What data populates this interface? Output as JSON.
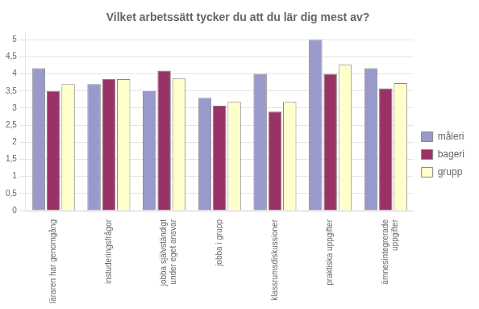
{
  "chart_data": {
    "type": "bar",
    "title": "Vilket arbetssätt tycker du att du lär dig mest av?",
    "categories": [
      "läraren har genomgång",
      "instuderingsfrågor",
      "jobba självständigt\nunder eget ansvar",
      "jobba i grupp",
      "klassrumsdiskussioner",
      "praktiska uppgifter",
      "ämnesintegrerade\nuppgifter"
    ],
    "series": [
      {
        "name": "måleri",
        "color": "#9999CC",
        "values": [
          4.17,
          3.7,
          3.5,
          3.3,
          4.0,
          5.0,
          4.17
        ]
      },
      {
        "name": "bageri",
        "color": "#993366",
        "values": [
          3.5,
          3.85,
          4.1,
          3.07,
          2.9,
          4.0,
          3.58
        ]
      },
      {
        "name": "grupp",
        "color": "#FFFFCC",
        "values": [
          3.7,
          3.85,
          3.87,
          3.18,
          3.18,
          4.27,
          3.73
        ]
      }
    ],
    "ylim": [
      0,
      5.2
    ],
    "yticks": [
      0,
      {
        "value": 0.5,
        "label": "0,5"
      },
      1,
      {
        "value": 1.5,
        "label": "1,5"
      },
      2,
      {
        "value": 2.5,
        "label": "2,5"
      },
      3,
      {
        "value": 3.5,
        "label": "3,5"
      },
      4,
      {
        "value": 4.5,
        "label": "4,5"
      },
      5
    ],
    "grid": true,
    "legend": "right"
  }
}
